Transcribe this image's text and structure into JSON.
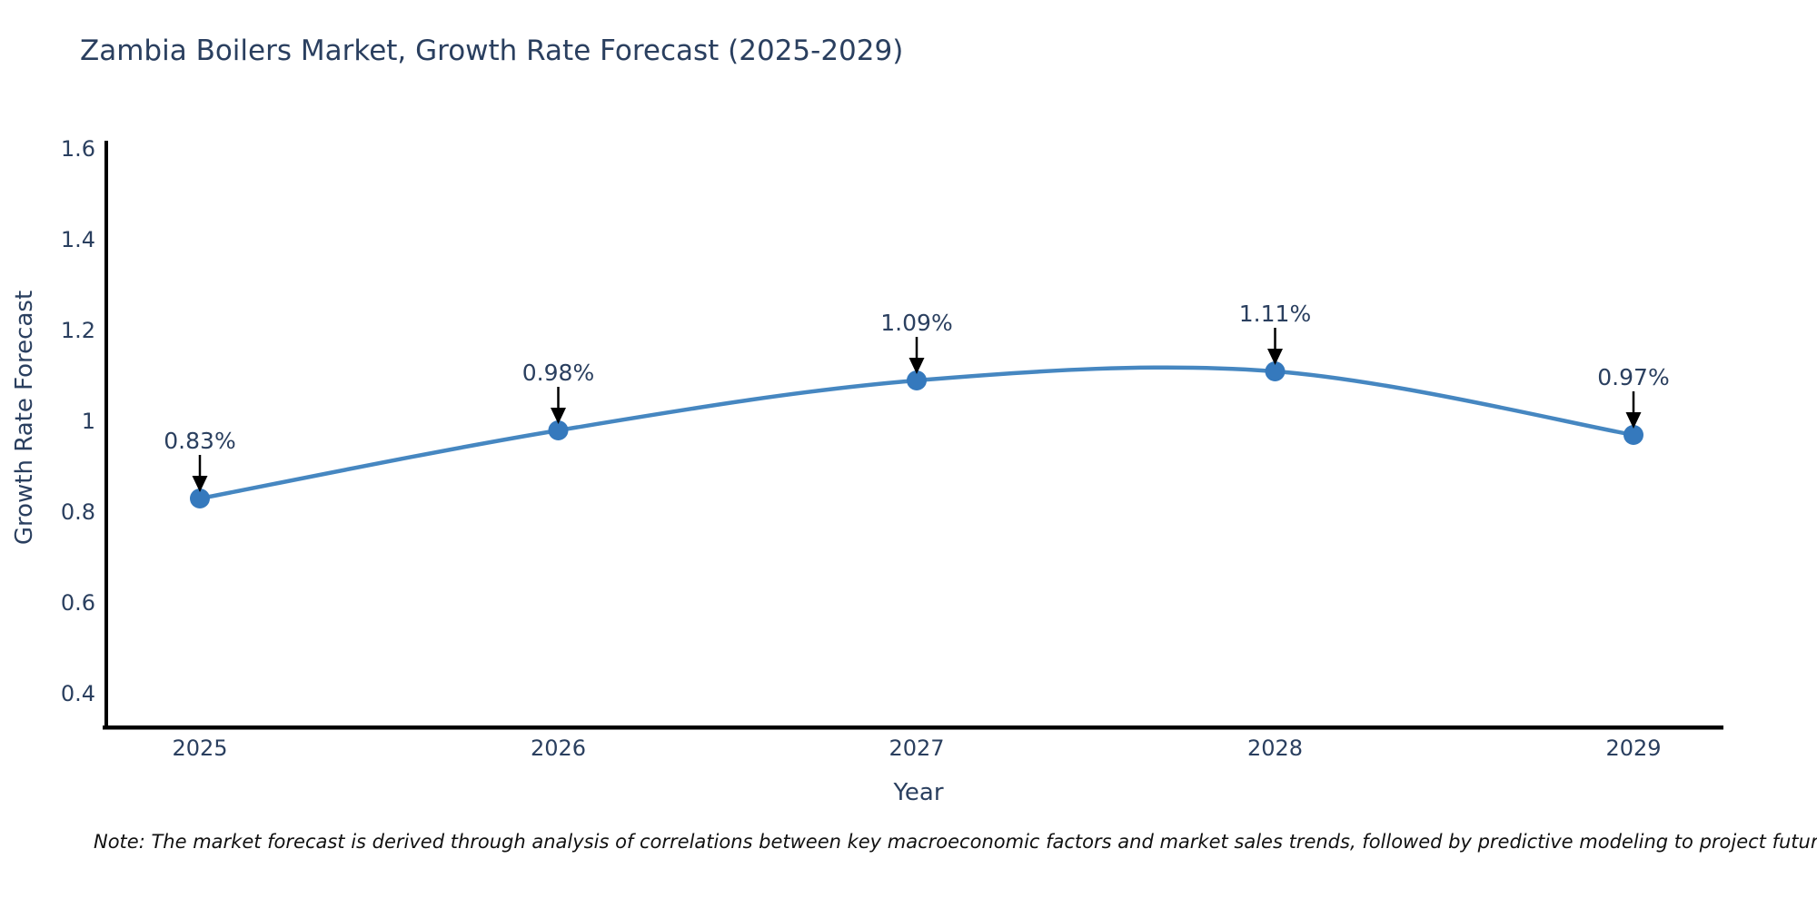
{
  "title": "Zambia Boilers Market, Growth Rate Forecast (2025-2029)",
  "note": "Note: The market forecast is derived through analysis of correlations between key macroeconomic factors and market sales trends, followed by predictive modeling to project future sales",
  "chart_data": {
    "type": "line",
    "title": "Zambia Boilers Market, Growth Rate Forecast (2025-2029)",
    "xlabel": "Year",
    "ylabel": "Growth Rate Forecast",
    "x": [
      2025,
      2026,
      2027,
      2028,
      2029
    ],
    "values": [
      0.83,
      0.98,
      1.09,
      1.11,
      0.97
    ],
    "point_labels": [
      "0.83%",
      "0.98%",
      "1.09%",
      "1.11%",
      "0.97%"
    ],
    "xtick_labels": [
      "2025",
      "2026",
      "2027",
      "2028",
      "2029"
    ],
    "ytick_values": [
      0.4,
      0.6,
      0.8,
      1.0,
      1.2,
      1.4,
      1.6
    ],
    "ytick_labels": [
      "0.4",
      "0.6",
      "0.8",
      "1",
      "1.2",
      "1.4",
      "1.6"
    ],
    "ylim": [
      0.33,
      1.62
    ],
    "grid": false,
    "legend": "none",
    "line_shape": "spline",
    "annotation_arrows": "down",
    "colors": {
      "line": "#4687c1",
      "marker": "#3579bd",
      "arrow": "#000000",
      "axis": "#000000",
      "text": "#2a3f5f"
    }
  }
}
